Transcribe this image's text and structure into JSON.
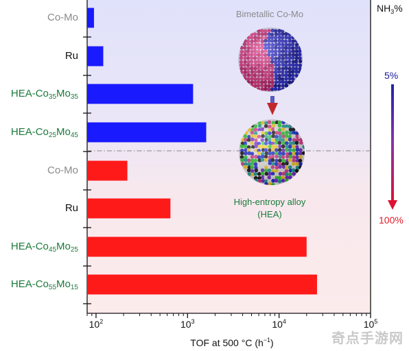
{
  "chart_data": {
    "type": "bar",
    "orientation": "horizontal",
    "x_scale": "log",
    "xlim": [
      80,
      100000
    ],
    "xlabel": {
      "main": "TOF at 500 °C (h",
      "exp": "−1",
      "close": ")"
    },
    "x_ticks": [
      {
        "base": "10",
        "exp": "2",
        "value": 100
      },
      {
        "base": "10",
        "exp": "3",
        "value": 1000
      },
      {
        "base": "10",
        "exp": "4",
        "value": 10000
      },
      {
        "base": "10",
        "exp": "5",
        "value": 100000
      }
    ],
    "right_axis_title": {
      "main": "NH",
      "sub": "3",
      "tail": "%"
    },
    "right_axis_labels": [
      "5%",
      "100%"
    ],
    "rows": [
      {
        "parts": [
          {
            "t": "Co-Mo",
            "sub": ""
          }
        ],
        "value": 95,
        "condition": "5%",
        "label_color": "#8a8a8a",
        "bar_color": "#1a1aff"
      },
      {
        "parts": [
          {
            "t": "Ru",
            "sub": ""
          }
        ],
        "value": 120,
        "condition": "5%",
        "label_color": "#111111",
        "bar_color": "#1a1aff"
      },
      {
        "parts": [
          {
            "t": "HEA-Co",
            "sub": "35"
          },
          {
            "t": "Mo",
            "sub": "35"
          }
        ],
        "value": 1150,
        "condition": "5%",
        "label_color": "#1a7a3a",
        "bar_color": "#1a1aff"
      },
      {
        "parts": [
          {
            "t": "HEA-Co",
            "sub": "25"
          },
          {
            "t": "Mo",
            "sub": "45"
          }
        ],
        "value": 1600,
        "condition": "5%",
        "label_color": "#1a7a3a",
        "bar_color": "#1a1aff"
      },
      {
        "parts": [
          {
            "t": "Co-Mo",
            "sub": ""
          }
        ],
        "value": 220,
        "condition": "100%",
        "label_color": "#8a8a8a",
        "bar_color": "#ff1a1a"
      },
      {
        "parts": [
          {
            "t": "Ru",
            "sub": ""
          }
        ],
        "value": 650,
        "condition": "100%",
        "label_color": "#111111",
        "bar_color": "#ff1a1a"
      },
      {
        "parts": [
          {
            "t": "HEA-Co",
            "sub": "45"
          },
          {
            "t": "Mo",
            "sub": "25"
          }
        ],
        "value": 20000,
        "condition": "100%",
        "label_color": "#1a7a3a",
        "bar_color": "#ff1a1a"
      },
      {
        "parts": [
          {
            "t": "HEA-Co",
            "sub": "55"
          },
          {
            "t": "Mo",
            "sub": "15"
          }
        ],
        "value": 26000,
        "condition": "100%",
        "label_color": "#1a7a3a",
        "bar_color": "#ff1a1a"
      }
    ],
    "colors": {
      "low_nh3": "#1a1aff",
      "high_nh3": "#ff1a1a",
      "hea_label": "#1a7a3a",
      "divider": "#888888"
    }
  },
  "inset": {
    "top_label": "Bimetallic Co-Mo",
    "bottom_label_1": "High-entropy alloy",
    "bottom_label_2": "(HEA)"
  },
  "watermark": "奇点手游网"
}
